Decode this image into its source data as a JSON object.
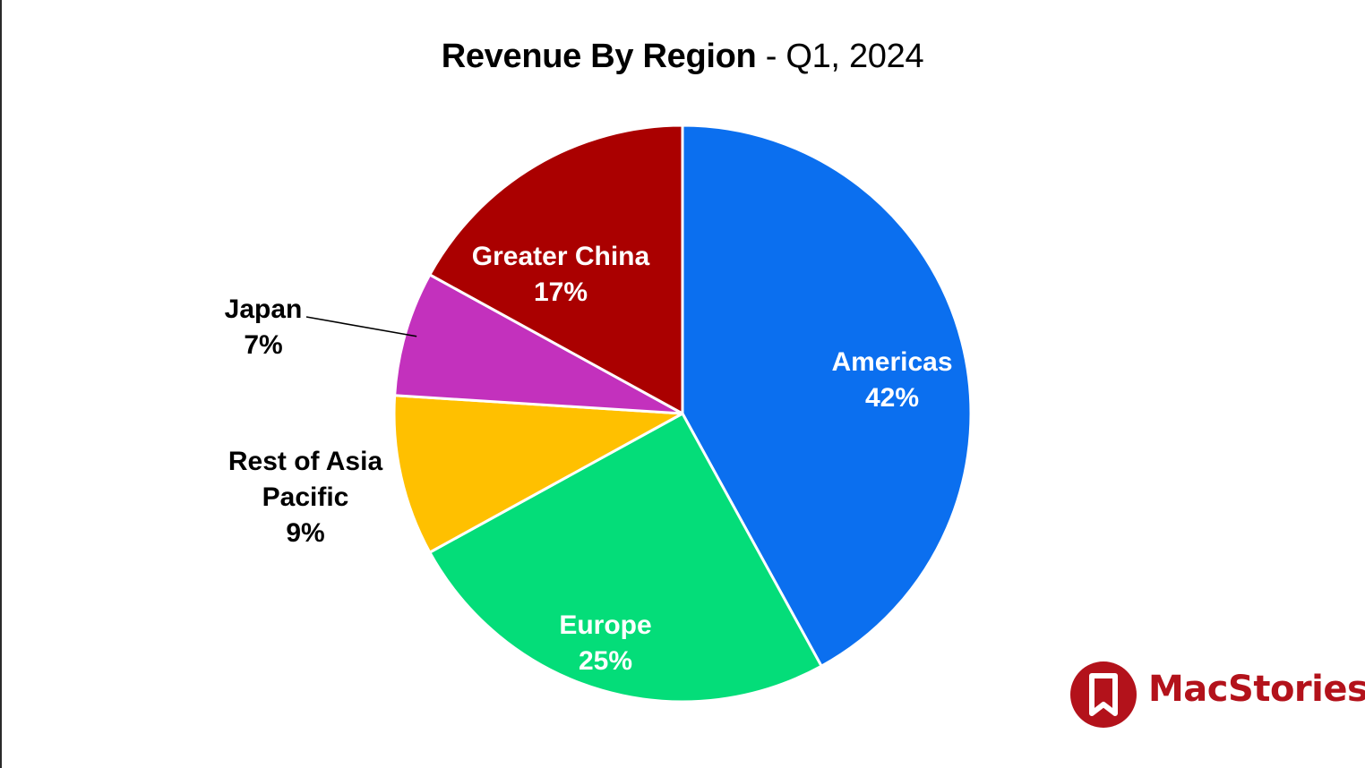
{
  "title": {
    "bold": "Revenue By Region",
    "rest": " - Q1, 2024"
  },
  "chart_data": {
    "type": "pie",
    "title": "Revenue By Region - Q1, 2024",
    "start_angle_deg": 0,
    "direction": "clockwise",
    "slices": [
      {
        "label": "Americas",
        "value_label": "42%",
        "value": 42,
        "color": "#0b6fef",
        "label_color": "#ffffff",
        "label_position": "inside"
      },
      {
        "label": "Europe",
        "value_label": "25%",
        "value": 25,
        "color": "#04dd79",
        "label_color": "#ffffff",
        "label_position": "inside"
      },
      {
        "label": "Rest of Asia Pacific",
        "label_lines": [
          "Rest of Asia",
          "Pacific"
        ],
        "value_label": "9%",
        "value": 9,
        "color": "#ffc000",
        "label_color": "#000000",
        "label_position": "outside"
      },
      {
        "label": "Japan",
        "value_label": "7%",
        "value": 7,
        "color": "#c331bd",
        "label_color": "#000000",
        "label_position": "outside-leader"
      },
      {
        "label": "Greater China",
        "value_label": "17%",
        "value": 17,
        "color": "#aa0000",
        "label_color": "#ffffff",
        "label_position": "inside"
      }
    ]
  },
  "logo": {
    "text": "MacStories",
    "color": "#b3121b"
  }
}
